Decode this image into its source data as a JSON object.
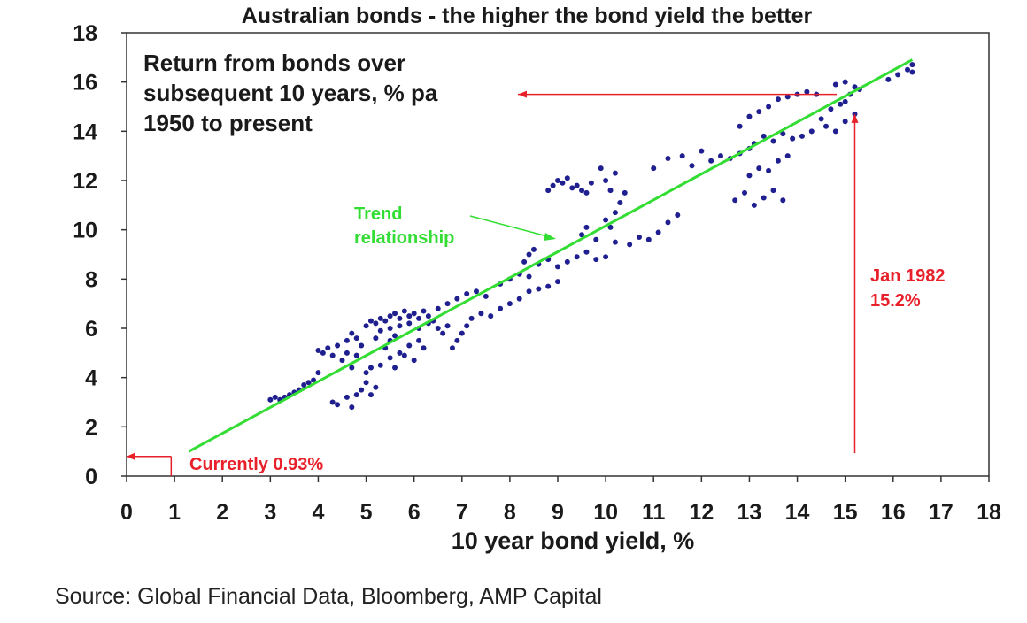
{
  "chart_data": {
    "type": "scatter",
    "title": "Australian bonds - the higher the bond yield the better",
    "xlabel": "10 year bond yield, %",
    "ylabel": "",
    "xlim": [
      0,
      18
    ],
    "ylim": [
      0,
      18
    ],
    "x_ticks": [
      "0",
      "1",
      "2",
      "3",
      "4",
      "5",
      "6",
      "7",
      "8",
      "9",
      "10",
      "11",
      "12",
      "13",
      "14",
      "15",
      "16",
      "17",
      "18"
    ],
    "y_ticks": [
      "0",
      "2",
      "4",
      "6",
      "8",
      "10",
      "12",
      "14",
      "16",
      "18"
    ],
    "grid": false,
    "series": [
      {
        "color": "#1f1f8f",
        "points": [
          [
            3.0,
            3.1
          ],
          [
            3.1,
            3.2
          ],
          [
            3.2,
            3.1
          ],
          [
            3.3,
            3.2
          ],
          [
            3.4,
            3.3
          ],
          [
            3.5,
            3.4
          ],
          [
            3.6,
            3.5
          ],
          [
            3.7,
            3.7
          ],
          [
            3.8,
            3.8
          ],
          [
            3.9,
            3.9
          ],
          [
            4.0,
            5.1
          ],
          [
            4.0,
            4.2
          ],
          [
            4.1,
            5.0
          ],
          [
            4.2,
            5.2
          ],
          [
            4.3,
            4.9
          ],
          [
            4.4,
            5.3
          ],
          [
            4.5,
            4.7
          ],
          [
            4.6,
            5.0
          ],
          [
            4.7,
            4.4
          ],
          [
            4.8,
            4.9
          ],
          [
            4.9,
            5.3
          ],
          [
            4.3,
            3.0
          ],
          [
            4.4,
            2.9
          ],
          [
            4.6,
            3.2
          ],
          [
            4.7,
            2.8
          ],
          [
            4.8,
            3.3
          ],
          [
            4.9,
            3.5
          ],
          [
            5.0,
            3.8
          ],
          [
            5.1,
            3.3
          ],
          [
            5.0,
            4.2
          ],
          [
            5.1,
            4.4
          ],
          [
            5.2,
            3.6
          ],
          [
            4.6,
            5.5
          ],
          [
            4.7,
            5.8
          ],
          [
            4.8,
            5.6
          ],
          [
            5.0,
            6.1
          ],
          [
            5.1,
            6.3
          ],
          [
            5.2,
            6.2
          ],
          [
            5.3,
            6.4
          ],
          [
            5.4,
            6.3
          ],
          [
            5.5,
            6.5
          ],
          [
            5.6,
            6.6
          ],
          [
            5.7,
            6.4
          ],
          [
            5.8,
            6.7
          ],
          [
            5.9,
            6.5
          ],
          [
            6.0,
            6.6
          ],
          [
            6.1,
            6.4
          ],
          [
            6.2,
            6.7
          ],
          [
            6.3,
            6.5
          ],
          [
            5.2,
            5.6
          ],
          [
            5.3,
            5.9
          ],
          [
            5.5,
            6.0
          ],
          [
            5.7,
            6.1
          ],
          [
            5.9,
            6.2
          ],
          [
            6.1,
            6.0
          ],
          [
            6.3,
            6.2
          ],
          [
            5.4,
            5.2
          ],
          [
            5.5,
            5.5
          ],
          [
            5.6,
            5.7
          ],
          [
            5.7,
            5.0
          ],
          [
            5.8,
            4.9
          ],
          [
            5.9,
            5.3
          ],
          [
            6.0,
            4.7
          ],
          [
            6.1,
            5.5
          ],
          [
            6.2,
            5.2
          ],
          [
            5.3,
            4.5
          ],
          [
            5.5,
            4.8
          ],
          [
            5.6,
            4.4
          ],
          [
            6.4,
            6.3
          ],
          [
            6.5,
            6.0
          ],
          [
            6.6,
            5.8
          ],
          [
            6.7,
            6.1
          ],
          [
            6.8,
            5.2
          ],
          [
            6.9,
            5.5
          ],
          [
            7.0,
            5.8
          ],
          [
            7.1,
            6.1
          ],
          [
            6.5,
            6.8
          ],
          [
            6.7,
            7.0
          ],
          [
            6.9,
            7.2
          ],
          [
            7.1,
            7.4
          ],
          [
            7.3,
            7.5
          ],
          [
            7.5,
            7.3
          ],
          [
            7.8,
            7.8
          ],
          [
            8.0,
            8.0
          ],
          [
            8.2,
            8.2
          ],
          [
            8.4,
            8.1
          ],
          [
            7.2,
            6.4
          ],
          [
            7.4,
            6.6
          ],
          [
            7.6,
            6.5
          ],
          [
            7.8,
            6.8
          ],
          [
            8.0,
            7.0
          ],
          [
            8.2,
            7.2
          ],
          [
            8.4,
            7.5
          ],
          [
            8.6,
            7.6
          ],
          [
            8.8,
            7.7
          ],
          [
            9.0,
            7.9
          ],
          [
            8.3,
            8.7
          ],
          [
            8.4,
            9.0
          ],
          [
            8.5,
            9.2
          ],
          [
            8.6,
            8.6
          ],
          [
            8.8,
            8.8
          ],
          [
            9.0,
            8.5
          ],
          [
            9.2,
            8.7
          ],
          [
            9.4,
            8.9
          ],
          [
            9.6,
            9.1
          ],
          [
            9.8,
            8.8
          ],
          [
            10.0,
            8.9
          ],
          [
            8.8,
            11.6
          ],
          [
            8.9,
            11.8
          ],
          [
            9.0,
            12.0
          ],
          [
            9.1,
            11.9
          ],
          [
            9.2,
            12.1
          ],
          [
            9.3,
            11.7
          ],
          [
            9.4,
            11.8
          ],
          [
            9.5,
            11.6
          ],
          [
            9.6,
            11.5
          ],
          [
            9.7,
            11.9
          ],
          [
            9.9,
            12.5
          ],
          [
            10.0,
            12.0
          ],
          [
            10.1,
            11.6
          ],
          [
            10.2,
            12.3
          ],
          [
            10.3,
            11.1
          ],
          [
            10.4,
            11.5
          ],
          [
            10.0,
            10.4
          ],
          [
            10.1,
            10.1
          ],
          [
            10.2,
            10.7
          ],
          [
            9.5,
            9.8
          ],
          [
            9.6,
            10.1
          ],
          [
            9.8,
            9.6
          ],
          [
            10.2,
            9.5
          ],
          [
            10.5,
            9.4
          ],
          [
            10.7,
            9.7
          ],
          [
            10.9,
            9.6
          ],
          [
            11.1,
            9.9
          ],
          [
            11.3,
            10.3
          ],
          [
            11.5,
            10.6
          ],
          [
            11.0,
            12.5
          ],
          [
            11.3,
            12.9
          ],
          [
            11.6,
            13.0
          ],
          [
            11.8,
            12.6
          ],
          [
            12.0,
            13.2
          ],
          [
            12.2,
            12.8
          ],
          [
            12.4,
            13.0
          ],
          [
            12.6,
            12.9
          ],
          [
            12.8,
            13.1
          ],
          [
            13.0,
            13.3
          ],
          [
            12.8,
            14.2
          ],
          [
            13.0,
            14.6
          ],
          [
            13.2,
            14.8
          ],
          [
            13.4,
            15.0
          ],
          [
            13.6,
            15.3
          ],
          [
            13.8,
            15.4
          ],
          [
            14.0,
            15.5
          ],
          [
            14.2,
            15.6
          ],
          [
            14.4,
            15.5
          ],
          [
            12.7,
            11.2
          ],
          [
            12.9,
            11.5
          ],
          [
            13.1,
            11.0
          ],
          [
            13.3,
            11.3
          ],
          [
            13.5,
            11.6
          ],
          [
            13.7,
            11.2
          ],
          [
            13.0,
            12.2
          ],
          [
            13.2,
            12.5
          ],
          [
            13.4,
            12.4
          ],
          [
            13.1,
            13.5
          ],
          [
            13.3,
            13.8
          ],
          [
            13.5,
            13.6
          ],
          [
            13.7,
            13.9
          ],
          [
            13.9,
            13.7
          ],
          [
            14.1,
            13.8
          ],
          [
            14.3,
            14.0
          ],
          [
            13.6,
            12.8
          ],
          [
            13.8,
            13.0
          ],
          [
            14.5,
            14.5
          ],
          [
            14.7,
            14.9
          ],
          [
            14.9,
            15.1
          ],
          [
            15.0,
            15.2
          ],
          [
            15.1,
            15.5
          ],
          [
            15.2,
            15.8
          ],
          [
            15.3,
            15.7
          ],
          [
            14.8,
            15.9
          ],
          [
            15.0,
            16.0
          ],
          [
            15.9,
            16.1
          ],
          [
            16.1,
            16.3
          ],
          [
            16.3,
            16.5
          ],
          [
            16.4,
            16.7
          ],
          [
            16.4,
            16.4
          ],
          [
            14.6,
            14.2
          ],
          [
            14.8,
            14.0
          ],
          [
            15.0,
            14.4
          ],
          [
            15.2,
            14.7
          ]
        ]
      }
    ],
    "trend_line": {
      "color": "#33dd33",
      "start": [
        1.3,
        1.0
      ],
      "end": [
        16.4,
        16.9
      ]
    },
    "annotations": {
      "box_text": [
        "Return from bonds over",
        "subsequent 10 years, % pa",
        "1950 to present"
      ],
      "trend_label": [
        "Trend",
        "relationship"
      ],
      "jan_label": [
        "Jan 1982",
        "15.2%"
      ],
      "current_label": "Currently 0.93%",
      "red_color": "#e8202a"
    },
    "source": "Source: Global Financial Data, Bloomberg, AMP Capital"
  }
}
